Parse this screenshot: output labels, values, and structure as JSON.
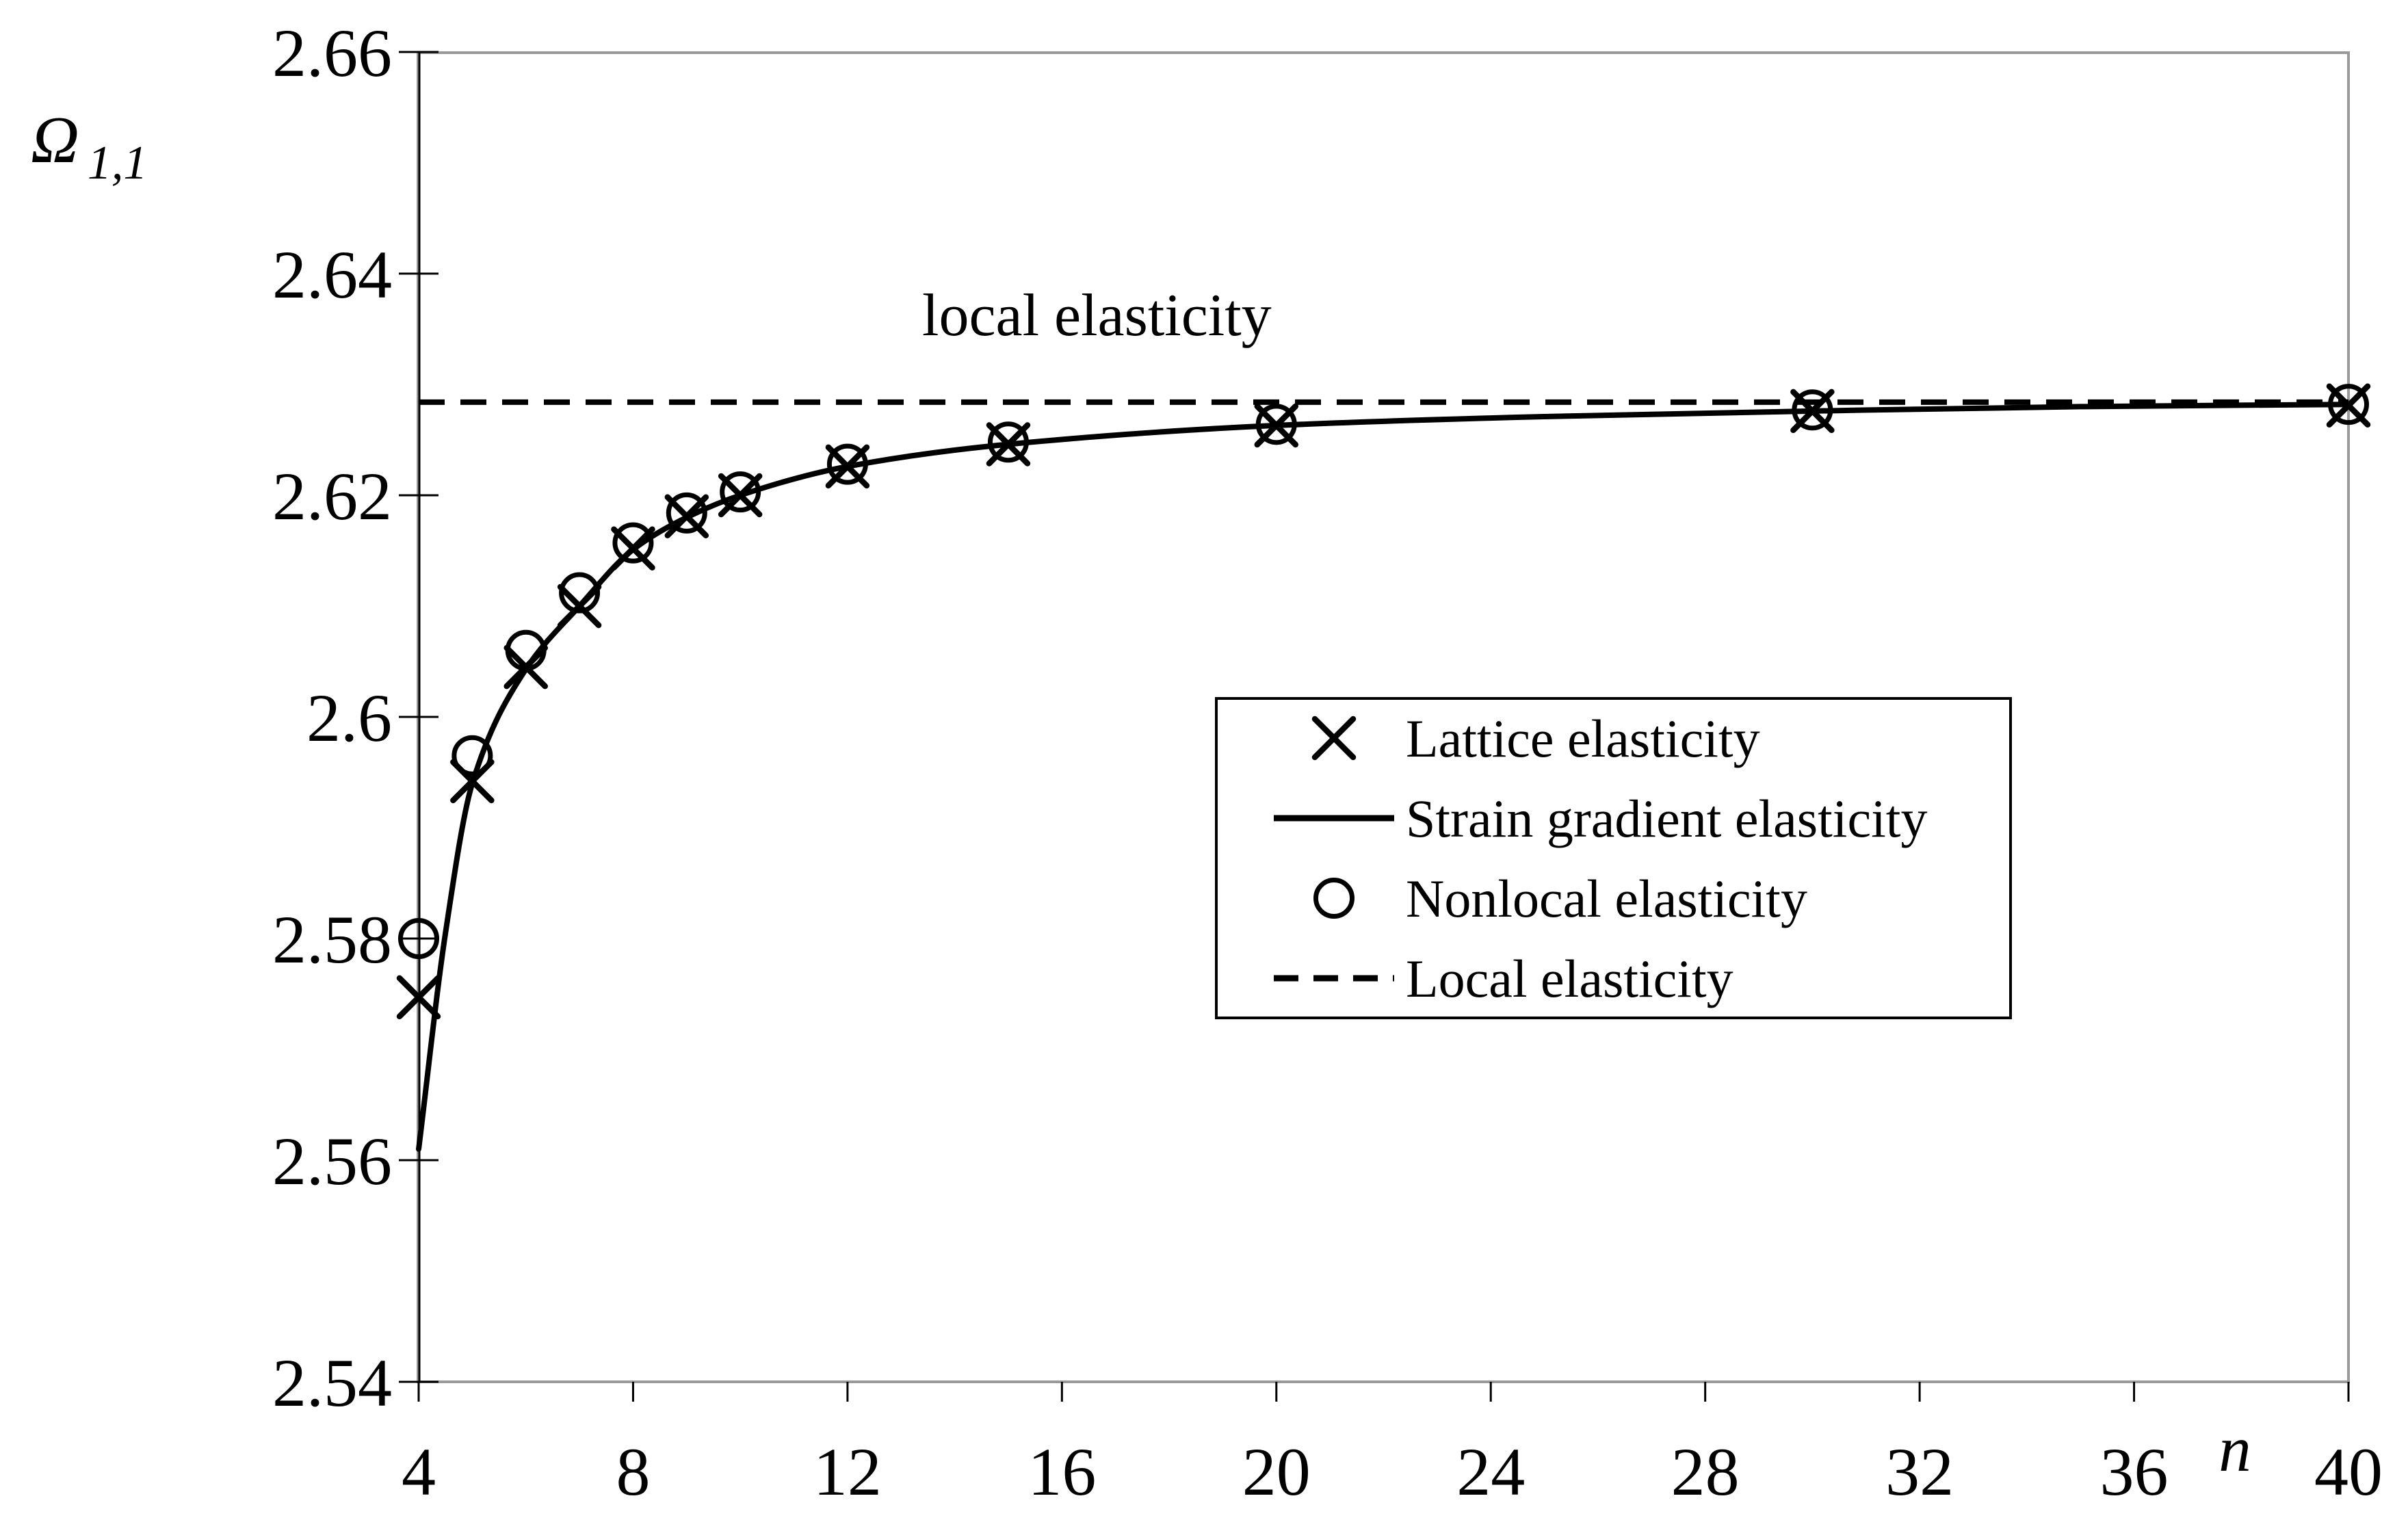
{
  "figure": {
    "background": "#ffffff",
    "frame_color": "#999999",
    "line_color": "#000000"
  },
  "y_axis": {
    "title": "Ω",
    "title_sub": "1,1",
    "ticks": [
      "2.66",
      "2.64",
      "2.62",
      "2.6",
      "2.58",
      "2.56",
      "2.54"
    ],
    "tick_values": [
      2.66,
      2.64,
      2.62,
      2.6,
      2.58,
      2.56,
      2.54
    ],
    "range": [
      2.54,
      2.66
    ]
  },
  "x_axis": {
    "title": "n",
    "ticks": [
      "4",
      "8",
      "12",
      "16",
      "20",
      "24",
      "28",
      "32",
      "36",
      "40"
    ],
    "tick_values": [
      4,
      8,
      12,
      16,
      20,
      24,
      28,
      32,
      36,
      40
    ],
    "range": [
      4,
      40
    ]
  },
  "annotation": {
    "text": "local elasticity"
  },
  "legend": {
    "items": [
      {
        "label": "Lattice elasticity",
        "marker": "x"
      },
      {
        "label": "Strain gradient elasticity",
        "marker": "solid-line"
      },
      {
        "label": "Nonlocal elasticity",
        "marker": "circle"
      },
      {
        "label": "Local elasticity",
        "marker": "dashed-line"
      }
    ]
  },
  "chart_data": {
    "type": "line",
    "title": "",
    "xlabel": "n",
    "ylabel": "Ω1,1",
    "xlim": [
      4,
      40
    ],
    "ylim": [
      2.54,
      2.66
    ],
    "grid": false,
    "legend_position": "center-right",
    "series": [
      {
        "name": "Lattice elasticity",
        "type": "scatter",
        "marker": "x",
        "x": [
          4,
          5,
          6,
          7,
          8,
          9,
          10,
          12,
          15,
          20,
          30,
          40
        ],
        "y": [
          2.5747,
          2.5942,
          2.6045,
          2.61,
          2.6152,
          2.6181,
          2.62,
          2.6226,
          2.6246,
          2.6263,
          2.6276,
          2.6281
        ]
      },
      {
        "name": "Strain gradient elasticity",
        "type": "line",
        "x": [
          4,
          4.5,
          5,
          6,
          7,
          8,
          9,
          10,
          12,
          15,
          20,
          25,
          30,
          35,
          40
        ],
        "y": [
          2.561,
          2.5805,
          2.594,
          2.6043,
          2.61,
          2.6151,
          2.618,
          2.62,
          2.6226,
          2.6246,
          2.6263,
          2.6271,
          2.6276,
          2.628,
          2.6282
        ]
      },
      {
        "name": "Nonlocal elasticity",
        "type": "scatter",
        "marker": "circle",
        "x": [
          4,
          5,
          6,
          7,
          8,
          9,
          10,
          12,
          15,
          20,
          30,
          40
        ],
        "y": [
          2.58,
          2.5965,
          2.606,
          2.6112,
          2.6157,
          2.6184,
          2.6203,
          2.6228,
          2.6248,
          2.6264,
          2.6277,
          2.6282
        ]
      },
      {
        "name": "Local elasticity",
        "type": "hline",
        "y": 2.6284
      }
    ]
  }
}
